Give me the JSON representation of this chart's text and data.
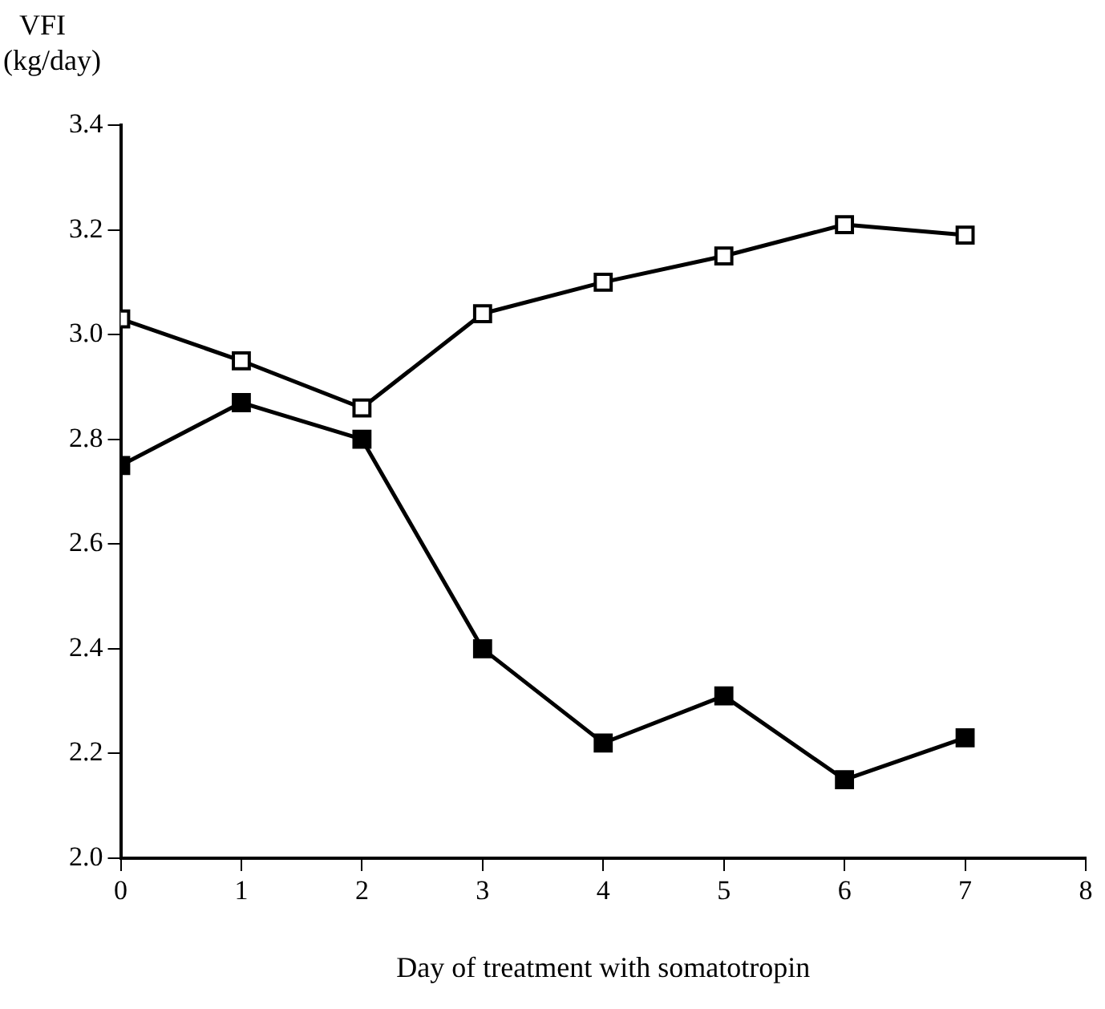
{
  "chart_data": {
    "type": "line",
    "xlabel": "Day of treatment with somatotropin",
    "ylabel": "VFI\n(kg/day)",
    "x": [
      0,
      1,
      2,
      3,
      4,
      5,
      6,
      7
    ],
    "series": [
      {
        "color": "#000000",
        "values": [
          3.03,
          2.95,
          2.86,
          3.04,
          3.1,
          3.15,
          3.21,
          3.19
        ]
      },
      {
        "color": "#000000",
        "values": [
          2.75,
          2.87,
          2.8,
          2.4,
          2.22,
          2.31,
          2.15,
          2.23
        ]
      }
    ],
    "xlim": [
      0,
      8
    ],
    "xticks": [
      0,
      1,
      2,
      3,
      4,
      5,
      6,
      7,
      8
    ],
    "ylim": [
      2.0,
      3.4
    ],
    "yticks": [
      {
        "value": 2.0,
        "label": "2.0"
      },
      {
        "value": 2.2,
        "label": "2.2"
      },
      {
        "value": 2.4,
        "label": "2.4"
      },
      {
        "value": 2.6,
        "label": "2.6"
      },
      {
        "value": 2.8,
        "label": "2.8"
      },
      {
        "value": 3.0,
        "label": "3.0"
      },
      {
        "value": 3.2,
        "label": "3.2"
      },
      {
        "value": 3.4,
        "label": "3.4"
      }
    ],
    "grid": false,
    "legend": false,
    "marker": "square",
    "line_style": "solid"
  }
}
